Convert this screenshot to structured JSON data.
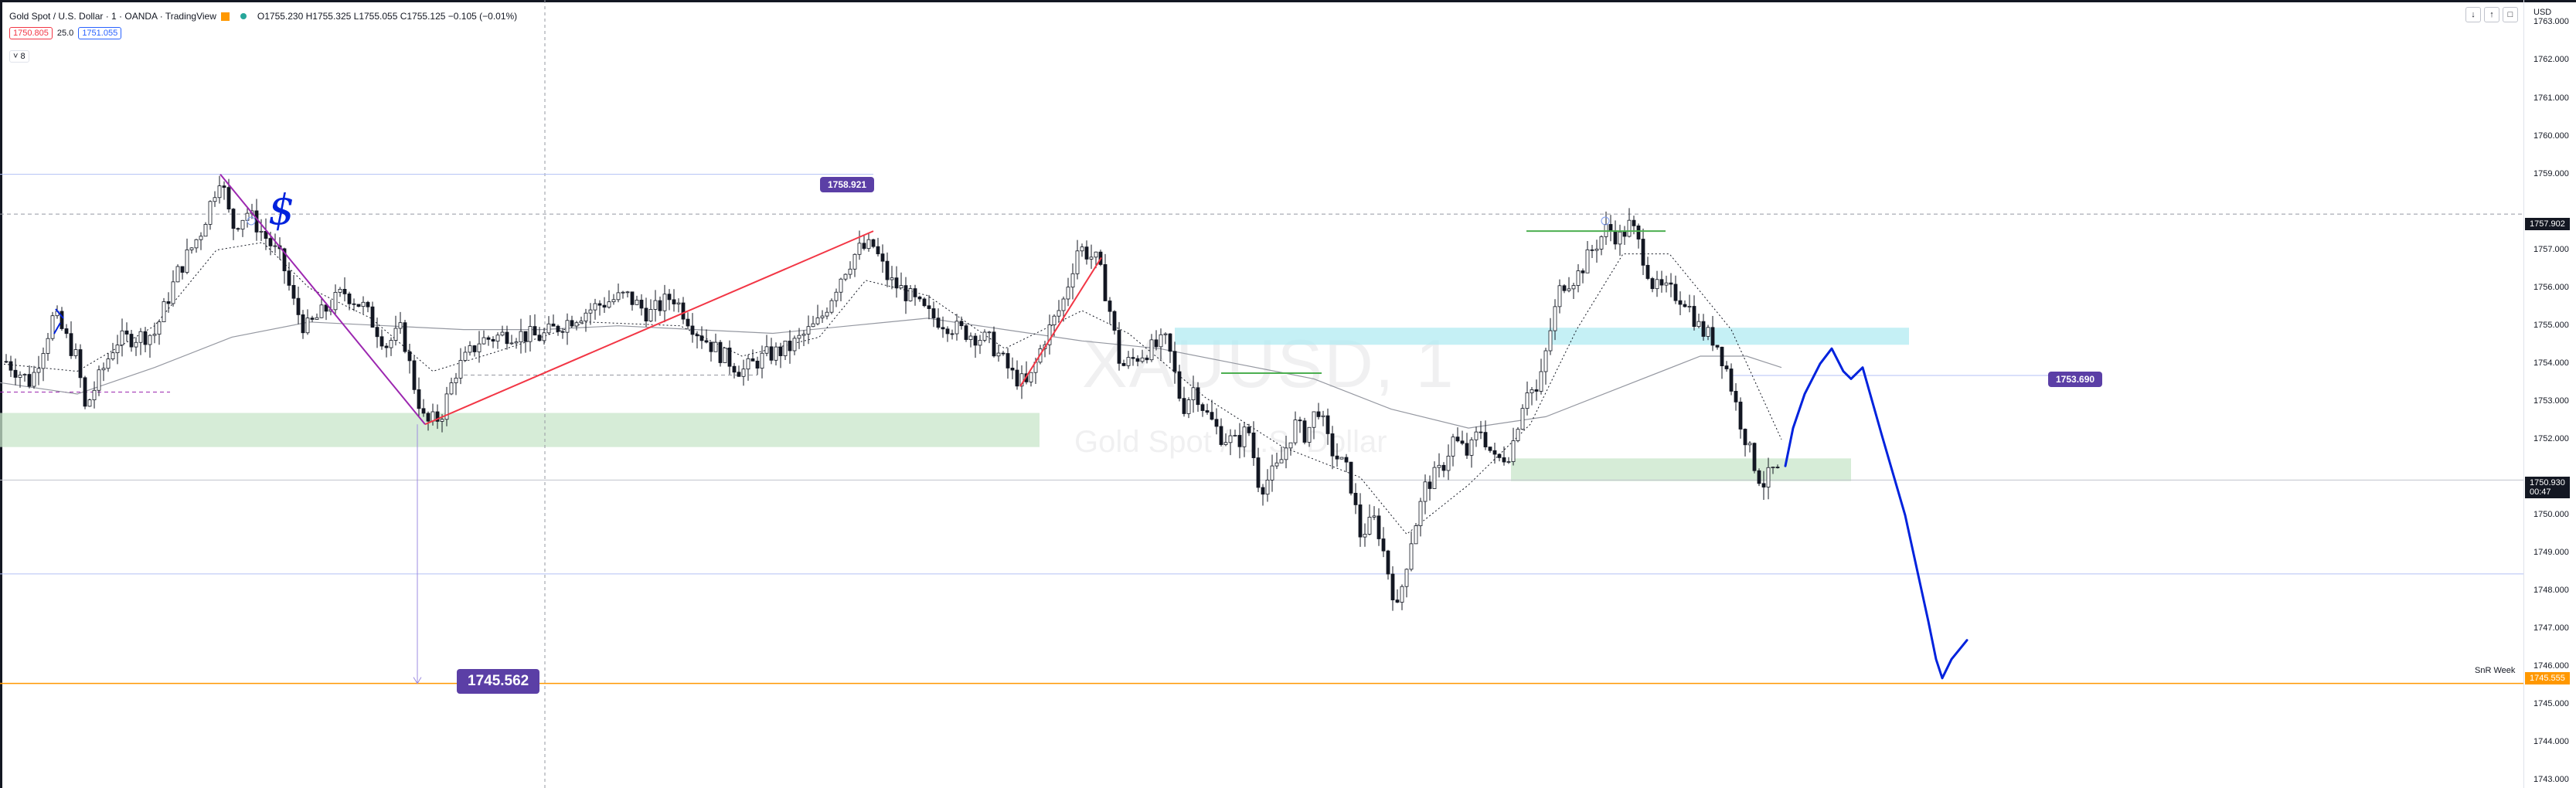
{
  "header": {
    "symbol_title": "Gold Spot / U.S. Dollar · 1 · OANDA · TradingView",
    "ohlc": "O1755.230 H1755.325 L1755.055 C1755.125 −0.105 (−0.01%)",
    "sell_price": "1750.805",
    "spread": "25.0",
    "buy_price": "1751.055",
    "collapse_label": "˅ 8"
  },
  "axis": {
    "currency": "USD",
    "labels": [
      "1763.000",
      "1762.000",
      "1761.000",
      "1760.000",
      "1759.000",
      "1757.000",
      "1756.000",
      "1755.000",
      "1754.000",
      "1753.000",
      "1752.000",
      "1750.000",
      "1749.000",
      "1748.000",
      "1747.000",
      "1746.000",
      "1745.000",
      "1744.000",
      "1743.000"
    ],
    "current_price": "1750.930",
    "countdown": "00:47",
    "level_1757": "1757.902",
    "level_1745": "1745.555",
    "snr_label": "SnR Week"
  },
  "tags": {
    "high_tag": "1758.921",
    "mid_tag": "1753.690",
    "target_tag": "1745.562"
  },
  "watermark": {
    "symbol": "XAUUSD, 1",
    "name": "Gold Spot / U.S. Dollar"
  },
  "chart_data": {
    "type": "candlestick",
    "ylim": [
      1742.8,
      1763.6
    ],
    "colors": {
      "candle_up": "#ffffff",
      "candle_down": "#131722",
      "trendline": "#f23645",
      "fib_line": "#9c27b0",
      "drawing": "#0022dd",
      "level_blue": "#b3c0f5",
      "level_orange": "#ff9800",
      "zone_green": "#c8e6c9",
      "zone_cyan": "#b2ebf2",
      "tag_purple": "#5b3fa6"
    },
    "price_path": [
      [
        0,
        1754.2
      ],
      [
        40,
        1753.5
      ],
      [
        70,
        1755.3
      ],
      [
        100,
        1754.1
      ],
      [
        110,
        1752.8
      ],
      [
        150,
        1754.6
      ],
      [
        200,
        1754.8
      ],
      [
        230,
        1756.4
      ],
      [
        260,
        1757.5
      ],
      [
        285,
        1759.0
      ],
      [
        300,
        1757.6
      ],
      [
        320,
        1758.0
      ],
      [
        345,
        1757.3
      ],
      [
        365,
        1756.7
      ],
      [
        380,
        1755.6
      ],
      [
        395,
        1754.9
      ],
      [
        420,
        1755.4
      ],
      [
        445,
        1755.9
      ],
      [
        470,
        1755.5
      ],
      [
        500,
        1754.5
      ],
      [
        520,
        1754.9
      ],
      [
        535,
        1753.5
      ],
      [
        550,
        1752.4
      ],
      [
        570,
        1752.6
      ],
      [
        590,
        1753.8
      ],
      [
        620,
        1754.6
      ],
      [
        660,
        1754.8
      ],
      [
        700,
        1754.7
      ],
      [
        740,
        1755.2
      ],
      [
        780,
        1755.6
      ],
      [
        810,
        1755.8
      ],
      [
        840,
        1755.3
      ],
      [
        870,
        1755.8
      ],
      [
        900,
        1754.9
      ],
      [
        930,
        1754.3
      ],
      [
        960,
        1753.8
      ],
      [
        990,
        1754.2
      ],
      [
        1020,
        1754.4
      ],
      [
        1060,
        1755.1
      ],
      [
        1090,
        1756.4
      ],
      [
        1110,
        1757.0
      ],
      [
        1130,
        1757.1
      ],
      [
        1150,
        1756.2
      ],
      [
        1170,
        1755.9
      ],
      [
        1200,
        1755.3
      ],
      [
        1240,
        1754.9
      ],
      [
        1280,
        1754.6
      ],
      [
        1310,
        1753.7
      ],
      [
        1330,
        1753.4
      ],
      [
        1350,
        1754.6
      ],
      [
        1375,
        1755.6
      ],
      [
        1395,
        1757.1
      ],
      [
        1420,
        1756.7
      ],
      [
        1435,
        1755.5
      ],
      [
        1450,
        1753.9
      ],
      [
        1480,
        1754.3
      ],
      [
        1510,
        1754.6
      ],
      [
        1530,
        1752.8
      ],
      [
        1545,
        1753.4
      ],
      [
        1560,
        1752.7
      ],
      [
        1580,
        1752.1
      ],
      [
        1600,
        1751.9
      ],
      [
        1615,
        1752.3
      ],
      [
        1630,
        1750.7
      ],
      [
        1655,
        1751.3
      ],
      [
        1675,
        1752.4
      ],
      [
        1690,
        1752.1
      ],
      [
        1705,
        1752.9
      ],
      [
        1720,
        1751.8
      ],
      [
        1745,
        1751.1
      ],
      [
        1760,
        1749.5
      ],
      [
        1780,
        1749.9
      ],
      [
        1795,
        1748.6
      ],
      [
        1808,
        1747.5
      ],
      [
        1825,
        1749.3
      ],
      [
        1845,
        1750.8
      ],
      [
        1865,
        1751.2
      ],
      [
        1880,
        1752.0
      ],
      [
        1900,
        1751.6
      ],
      [
        1915,
        1752.3
      ],
      [
        1935,
        1751.4
      ],
      [
        1955,
        1751.7
      ],
      [
        1975,
        1753.4
      ],
      [
        1990,
        1753.2
      ],
      [
        2005,
        1754.8
      ],
      [
        2020,
        1756.1
      ],
      [
        2040,
        1756.3
      ],
      [
        2060,
        1757.0
      ],
      [
        2080,
        1757.6
      ],
      [
        2095,
        1757.3
      ],
      [
        2110,
        1757.7
      ],
      [
        2125,
        1756.9
      ],
      [
        2140,
        1756.0
      ],
      [
        2160,
        1755.9
      ],
      [
        2180,
        1755.7
      ],
      [
        2200,
        1754.9
      ],
      [
        2220,
        1754.6
      ],
      [
        2235,
        1753.8
      ],
      [
        2250,
        1752.6
      ],
      [
        2265,
        1751.6
      ],
      [
        2280,
        1750.8
      ],
      [
        2295,
        1751.2
      ],
      [
        2305,
        1751.0
      ]
    ],
    "ma_slow": [
      [
        0,
        1753.5
      ],
      [
        100,
        1753.2
      ],
      [
        200,
        1753.9
      ],
      [
        300,
        1754.7
      ],
      [
        400,
        1755.1
      ],
      [
        500,
        1755.0
      ],
      [
        600,
        1754.9
      ],
      [
        700,
        1754.9
      ],
      [
        800,
        1755.0
      ],
      [
        900,
        1754.9
      ],
      [
        1000,
        1754.8
      ],
      [
        1100,
        1755.0
      ],
      [
        1200,
        1755.2
      ],
      [
        1300,
        1754.9
      ],
      [
        1400,
        1754.6
      ],
      [
        1500,
        1754.4
      ],
      [
        1600,
        1754.0
      ],
      [
        1700,
        1753.6
      ],
      [
        1800,
        1752.8
      ],
      [
        1900,
        1752.3
      ],
      [
        2000,
        1752.6
      ],
      [
        2100,
        1753.4
      ],
      [
        2200,
        1754.2
      ],
      [
        2260,
        1754.2
      ],
      [
        2305,
        1753.9
      ]
    ],
    "ma_fast": [
      [
        0,
        1754.0
      ],
      [
        100,
        1753.8
      ],
      [
        200,
        1755.0
      ],
      [
        280,
        1757.0
      ],
      [
        340,
        1757.2
      ],
      [
        400,
        1756.0
      ],
      [
        480,
        1755.2
      ],
      [
        560,
        1753.8
      ],
      [
        640,
        1754.3
      ],
      [
        760,
        1755.1
      ],
      [
        880,
        1755.0
      ],
      [
        960,
        1754.2
      ],
      [
        1060,
        1754.7
      ],
      [
        1120,
        1756.2
      ],
      [
        1200,
        1755.8
      ],
      [
        1300,
        1754.4
      ],
      [
        1400,
        1755.4
      ],
      [
        1460,
        1754.8
      ],
      [
        1560,
        1753.1
      ],
      [
        1660,
        1751.8
      ],
      [
        1760,
        1751.0
      ],
      [
        1820,
        1749.5
      ],
      [
        1900,
        1750.8
      ],
      [
        1980,
        1752.4
      ],
      [
        2040,
        1754.9
      ],
      [
        2100,
        1756.9
      ],
      [
        2160,
        1756.9
      ],
      [
        2240,
        1754.9
      ],
      [
        2305,
        1752.0
      ]
    ],
    "levels": [
      {
        "price": 1759.0,
        "x_from": 0,
        "x_to": 1130,
        "style": "solid",
        "color": "#b3c0f5"
      },
      {
        "price": 1757.95,
        "x_from": 0,
        "x_to": 3265,
        "style": "dashed",
        "color": "#9598a1"
      },
      {
        "price": 1753.69,
        "x_from": 2240,
        "x_to": 2650,
        "style": "solid",
        "color": "#b3c0f5"
      },
      {
        "price": 1750.93,
        "x_from": 0,
        "x_to": 3265,
        "style": "solid",
        "color": "#c0c3cc"
      },
      {
        "price": 1748.45,
        "x_from": 0,
        "x_to": 3265,
        "style": "solid",
        "color": "#b3c0f5"
      },
      {
        "price": 1745.56,
        "x_from": 0,
        "x_to": 3265,
        "style": "solid",
        "color": "#ff9800"
      },
      {
        "price": 1753.7,
        "x_from": 600,
        "x_to": 980,
        "style": "dashed",
        "color": "#9598a1"
      },
      {
        "price": 1753.25,
        "x_from": 0,
        "x_to": 220,
        "style": "dashed",
        "color": "#9c27b0"
      }
    ],
    "zones": [
      {
        "x_from": 0,
        "x_to": 1345,
        "p_top": 1752.7,
        "p_bot": 1751.8,
        "color": "#c8e6c9"
      },
      {
        "x_from": 1520,
        "x_to": 2470,
        "p_top": 1754.95,
        "p_bot": 1754.5,
        "color": "#b2ebf2"
      },
      {
        "x_from": 1955,
        "x_to": 2395,
        "p_top": 1751.5,
        "p_bot": 1750.9,
        "color": "#c8e6c9"
      }
    ],
    "trendlines": [
      {
        "x1": 550,
        "p1": 1752.4,
        "x2": 1130,
        "p2": 1757.5,
        "color": "#f23645"
      },
      {
        "x1": 1320,
        "p1": 1753.4,
        "x2": 1425,
        "p2": 1756.8,
        "color": "#f23645"
      },
      {
        "x1": 285,
        "p1": 1759.0,
        "x2": 550,
        "p2": 1752.4,
        "color": "#9c27b0"
      },
      {
        "x1": 1580,
        "p1": 1753.75,
        "x2": 1710,
        "p2": 1753.75,
        "color": "#4caf50"
      },
      {
        "x1": 1975,
        "p1": 1757.5,
        "x2": 2155,
        "p2": 1757.5,
        "color": "#4caf50"
      }
    ],
    "vertical_measure": {
      "x": 540,
      "p_from": 1752.4,
      "p_to": 1745.56
    },
    "crosshair_x": 705,
    "projection": [
      [
        2310,
        1751.3
      ],
      [
        2320,
        1752.3
      ],
      [
        2335,
        1753.2
      ],
      [
        2355,
        1754.0
      ],
      [
        2370,
        1754.4
      ],
      [
        2385,
        1753.8
      ],
      [
        2395,
        1753.6
      ],
      [
        2410,
        1753.9
      ],
      [
        2435,
        1752.1
      ],
      [
        2465,
        1750.0
      ],
      [
        2480,
        1748.6
      ],
      [
        2495,
        1747.2
      ],
      [
        2505,
        1746.2
      ],
      [
        2513,
        1745.7
      ],
      [
        2525,
        1746.2
      ],
      [
        2545,
        1746.7
      ]
    ],
    "title": "Gold Spot / U.S. Dollar · 1 · OANDA · TradingView"
  }
}
